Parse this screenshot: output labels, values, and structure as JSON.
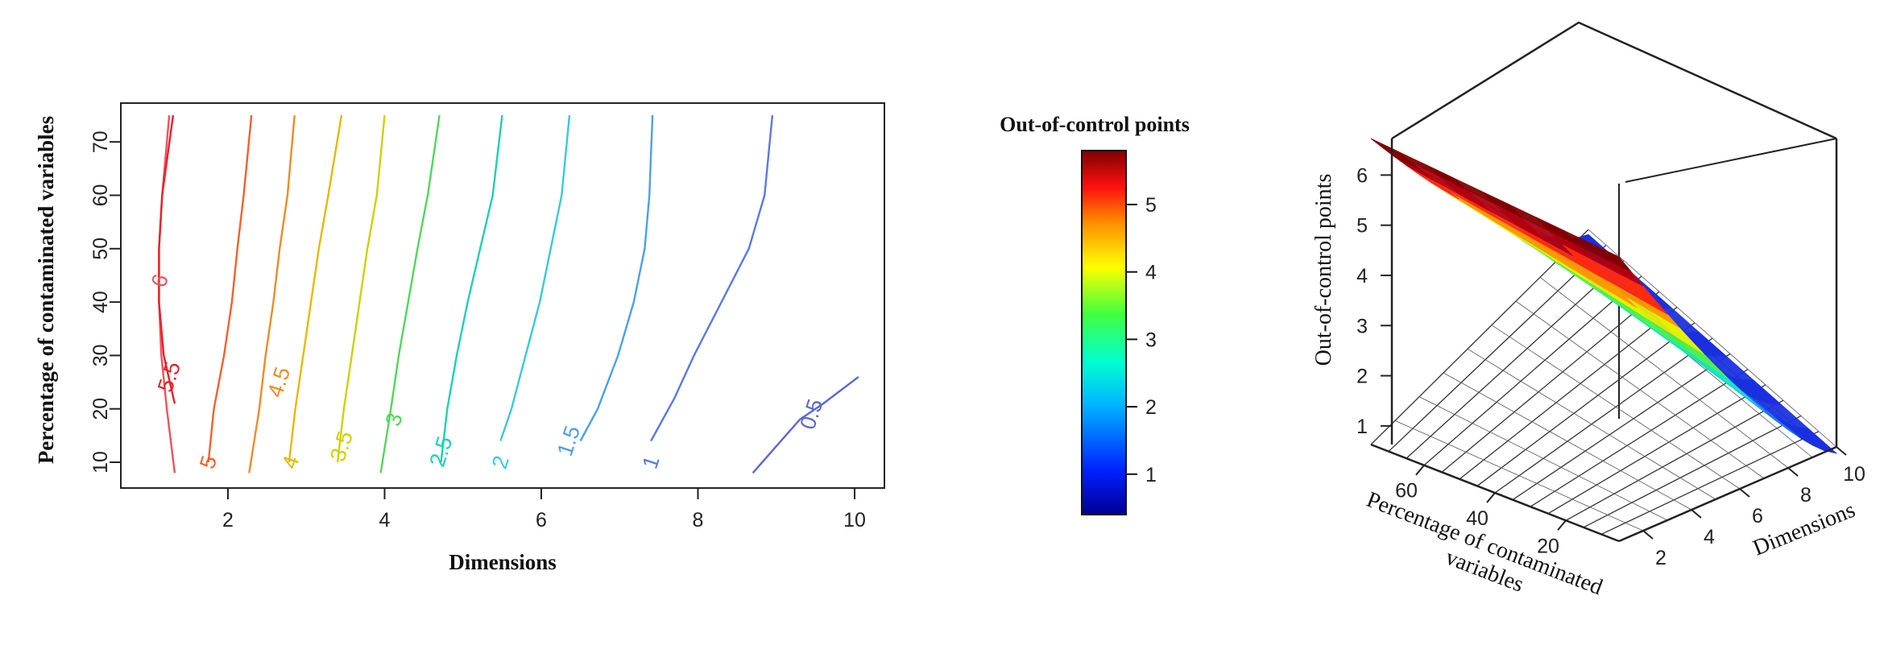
{
  "chart_data": [
    {
      "type": "contour",
      "title": "",
      "xlabel": "Dimensions",
      "ylabel": "Percentage of contaminated variables",
      "xlim": [
        0.8,
        10.4
      ],
      "ylim": [
        5,
        77
      ],
      "xticks": [
        2,
        4,
        6,
        8,
        10
      ],
      "yticks": [
        10,
        20,
        30,
        40,
        50,
        60,
        70
      ],
      "contours": [
        {
          "level": "6",
          "color": "#f0525a",
          "points": [
            [
              1.32,
              8
            ],
            [
              1.22,
              20
            ],
            [
              1.15,
              30
            ],
            [
              1.12,
              40
            ],
            [
              1.12,
              50
            ],
            [
              1.16,
              60
            ],
            [
              1.25,
              75
            ]
          ],
          "label_at": [
            1.13,
            44
          ]
        },
        {
          "level": "5.5",
          "color": "#e9202a",
          "points": [
            [
              1.32,
              21
            ],
            [
              1.18,
              30
            ],
            [
              1.12,
              40
            ],
            [
              1.12,
              50
            ],
            [
              1.16,
              60
            ],
            [
              1.3,
              75
            ]
          ],
          "label_at": [
            1.25,
            26
          ]
        },
        {
          "level": "5",
          "color": "#f5602a",
          "points": [
            [
              1.75,
              10
            ],
            [
              1.82,
              20
            ],
            [
              1.95,
              30
            ],
            [
              2.05,
              40
            ],
            [
              2.12,
              50
            ],
            [
              2.2,
              60
            ],
            [
              2.3,
              75
            ]
          ],
          "label_at": [
            1.75,
            10
          ]
        },
        {
          "level": "4.5",
          "color": "#f28a22",
          "points": [
            [
              2.27,
              8
            ],
            [
              2.4,
              20
            ],
            [
              2.48,
              30
            ],
            [
              2.58,
              40
            ],
            [
              2.66,
              50
            ],
            [
              2.76,
              60
            ],
            [
              2.85,
              75
            ]
          ],
          "label_at": [
            2.65,
            25
          ]
        },
        {
          "level": "4",
          "color": "#e8b800",
          "points": [
            [
              2.78,
              10
            ],
            [
              2.86,
              20
            ],
            [
              2.96,
              30
            ],
            [
              3.06,
              40
            ],
            [
              3.16,
              50
            ],
            [
              3.28,
              60
            ],
            [
              3.45,
              75
            ]
          ],
          "label_at": [
            2.8,
            10
          ]
        },
        {
          "level": "3.5",
          "color": "#d0d000",
          "points": [
            [
              3.4,
              10
            ],
            [
              3.48,
              20
            ],
            [
              3.58,
              30
            ],
            [
              3.68,
              40
            ],
            [
              3.78,
              50
            ],
            [
              3.9,
              60
            ],
            [
              4.0,
              75
            ]
          ],
          "label_at": [
            3.45,
            13
          ]
        },
        {
          "level": "3",
          "color": "#50d858",
          "points": [
            [
              3.95,
              8
            ],
            [
              4.08,
              20
            ],
            [
              4.18,
              30
            ],
            [
              4.3,
              40
            ],
            [
              4.42,
              50
            ],
            [
              4.55,
              60
            ],
            [
              4.7,
              75
            ]
          ],
          "label_at": [
            4.12,
            18
          ]
        },
        {
          "level": "2.5",
          "color": "#20d0b0",
          "points": [
            [
              4.72,
              10
            ],
            [
              4.8,
              20
            ],
            [
              4.92,
              30
            ],
            [
              5.06,
              40
            ],
            [
              5.22,
              50
            ],
            [
              5.38,
              60
            ],
            [
              5.5,
              75
            ]
          ],
          "label_at": [
            4.72,
            12
          ]
        },
        {
          "level": "2",
          "color": "#38c8e0",
          "points": [
            [
              5.48,
              14
            ],
            [
              5.62,
              20
            ],
            [
              5.8,
              30
            ],
            [
              5.98,
              40
            ],
            [
              6.12,
              50
            ],
            [
              6.26,
              60
            ],
            [
              6.36,
              75
            ]
          ],
          "label_at": [
            5.48,
            10
          ]
        },
        {
          "level": "1.5",
          "color": "#4aa0f0",
          "points": [
            [
              6.5,
              14
            ],
            [
              6.72,
              20
            ],
            [
              6.98,
              30
            ],
            [
              7.18,
              40
            ],
            [
              7.32,
              50
            ],
            [
              7.38,
              60
            ],
            [
              7.42,
              75
            ]
          ],
          "label_at": [
            6.35,
            14
          ]
        },
        {
          "level": "1",
          "color": "#5a78e8",
          "points": [
            [
              7.4,
              14
            ],
            [
              7.7,
              22
            ],
            [
              7.95,
              30
            ],
            [
              8.3,
              40
            ],
            [
              8.65,
              50
            ],
            [
              8.85,
              60
            ],
            [
              8.95,
              75
            ]
          ],
          "label_at": [
            7.4,
            10
          ]
        },
        {
          "level": "0.5",
          "color": "#5868d8",
          "points": [
            [
              8.7,
              8
            ],
            [
              9.0,
              13
            ],
            [
              9.3,
              18
            ],
            [
              9.6,
              21
            ],
            [
              10.05,
              26
            ]
          ],
          "label_at": [
            9.45,
            19
          ]
        }
      ]
    },
    {
      "type": "colorbar",
      "title": "Out-of-control points",
      "range": [
        0.4,
        5.8
      ],
      "ticks": [
        1,
        2,
        3,
        4,
        5
      ]
    },
    {
      "type": "surface3d",
      "zlabel": "Out-of-control points",
      "xlabel": "Dimensions",
      "ylabel_line1": "Percentage of contaminated",
      "ylabel_line2": "variables",
      "xticks": [
        2,
        4,
        6,
        8,
        10
      ],
      "yticks": [
        20,
        40,
        60
      ],
      "zticks": [
        1,
        2,
        3,
        4,
        5,
        6
      ],
      "xlim": [
        1,
        10
      ],
      "ylim": [
        5,
        75
      ],
      "zlim": [
        0.5,
        6.6
      ]
    }
  ]
}
